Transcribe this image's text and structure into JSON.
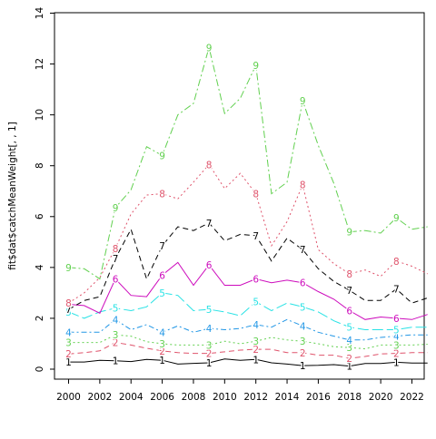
{
  "chart_data": {
    "type": "line",
    "title": "",
    "xlabel": "",
    "ylabel": "fit$dat$catchMeanWeight[, , 1]",
    "xlim": [
      2000,
      2023
    ],
    "ylim": [
      0,
      14
    ],
    "x_ticks": [
      2000,
      2002,
      2004,
      2006,
      2008,
      2010,
      2012,
      2014,
      2016,
      2018,
      2020,
      2022
    ],
    "y_ticks": [
      0,
      2,
      4,
      6,
      8,
      10,
      12,
      14
    ],
    "grid": false,
    "legend": "none",
    "x": [
      2000,
      2001,
      2002,
      2003,
      2004,
      2005,
      2006,
      2007,
      2008,
      2009,
      2010,
      2011,
      2012,
      2013,
      2014,
      2015,
      2016,
      2017,
      2018,
      2019,
      2020,
      2021,
      2022,
      2023
    ],
    "series": [
      {
        "label": "1",
        "color": "#000000",
        "dash": "",
        "values": [
          0.28,
          0.28,
          0.35,
          0.33,
          0.3,
          0.38,
          0.35,
          0.2,
          0.23,
          0.25,
          0.4,
          0.35,
          0.38,
          0.25,
          0.2,
          0.14,
          0.15,
          0.18,
          0.12,
          0.22,
          0.22,
          0.27,
          0.24,
          0.24
        ]
      },
      {
        "label": "2",
        "color": "#DF536B",
        "dash": "6,4",
        "values": [
          0.6,
          0.65,
          0.72,
          1.05,
          0.95,
          0.82,
          0.72,
          0.65,
          0.62,
          0.62,
          0.68,
          0.75,
          0.78,
          0.78,
          0.65,
          0.65,
          0.55,
          0.55,
          0.42,
          0.5,
          0.6,
          0.62,
          0.65,
          0.65
        ]
      },
      {
        "label": "3",
        "color": "#61D04F",
        "dash": "2,3",
        "values": [
          1.05,
          1.05,
          1.05,
          1.35,
          1.3,
          1.08,
          1.0,
          0.95,
          0.95,
          0.95,
          1.1,
          1.0,
          1.1,
          1.25,
          1.15,
          1.1,
          1.0,
          0.88,
          0.85,
          0.8,
          0.95,
          0.95,
          0.95,
          0.98
        ]
      },
      {
        "label": "4",
        "color": "#2297E6",
        "dash": "6,3,2,3",
        "values": [
          1.45,
          1.45,
          1.45,
          1.95,
          1.55,
          1.75,
          1.45,
          1.7,
          1.45,
          1.6,
          1.55,
          1.6,
          1.75,
          1.65,
          1.95,
          1.7,
          1.45,
          1.3,
          1.15,
          1.15,
          1.25,
          1.3,
          1.35,
          1.35
        ]
      },
      {
        "label": "5",
        "color": "#28E2E5",
        "dash": "12,4",
        "values": [
          2.25,
          2.0,
          2.25,
          2.4,
          2.3,
          2.45,
          3.0,
          2.9,
          2.3,
          2.35,
          2.25,
          2.1,
          2.65,
          2.3,
          2.6,
          2.45,
          2.25,
          1.9,
          1.65,
          1.55,
          1.55,
          1.55,
          1.65,
          1.65
        ]
      },
      {
        "label": "6",
        "color": "#CD0BBC",
        "dash": "",
        "values": [
          2.55,
          2.5,
          2.2,
          3.55,
          2.9,
          2.85,
          3.7,
          4.2,
          3.3,
          4.1,
          3.3,
          3.3,
          3.55,
          3.4,
          3.5,
          3.4,
          3.05,
          2.75,
          2.3,
          1.95,
          2.05,
          2.0,
          1.95,
          2.15
        ]
      },
      {
        "label": "7",
        "color": "#000000",
        "dash": "6,4",
        "values": [
          2.35,
          2.7,
          2.85,
          4.35,
          5.5,
          3.55,
          4.85,
          5.6,
          5.45,
          5.75,
          5.05,
          5.3,
          5.25,
          4.25,
          5.15,
          4.7,
          3.95,
          3.45,
          3.1,
          2.7,
          2.7,
          3.15,
          2.6,
          2.8
        ]
      },
      {
        "label": "8",
        "color": "#DF536B",
        "dash": "2,3",
        "values": [
          2.6,
          3.0,
          3.6,
          4.75,
          6.1,
          6.85,
          6.9,
          6.7,
          7.35,
          8.05,
          7.1,
          7.7,
          6.9,
          4.85,
          5.8,
          7.25,
          4.7,
          4.15,
          3.75,
          3.9,
          3.65,
          4.25,
          4.05,
          3.75
        ]
      },
      {
        "label": "9",
        "color": "#61D04F",
        "dash": "8,3,2,3",
        "values": [
          4.0,
          3.95,
          3.55,
          6.35,
          7.05,
          8.75,
          8.4,
          10.0,
          10.45,
          12.65,
          10.05,
          10.65,
          11.95,
          6.9,
          7.35,
          10.55,
          8.8,
          7.3,
          5.4,
          5.45,
          5.35,
          5.95,
          5.5,
          5.6
        ]
      }
    ]
  }
}
